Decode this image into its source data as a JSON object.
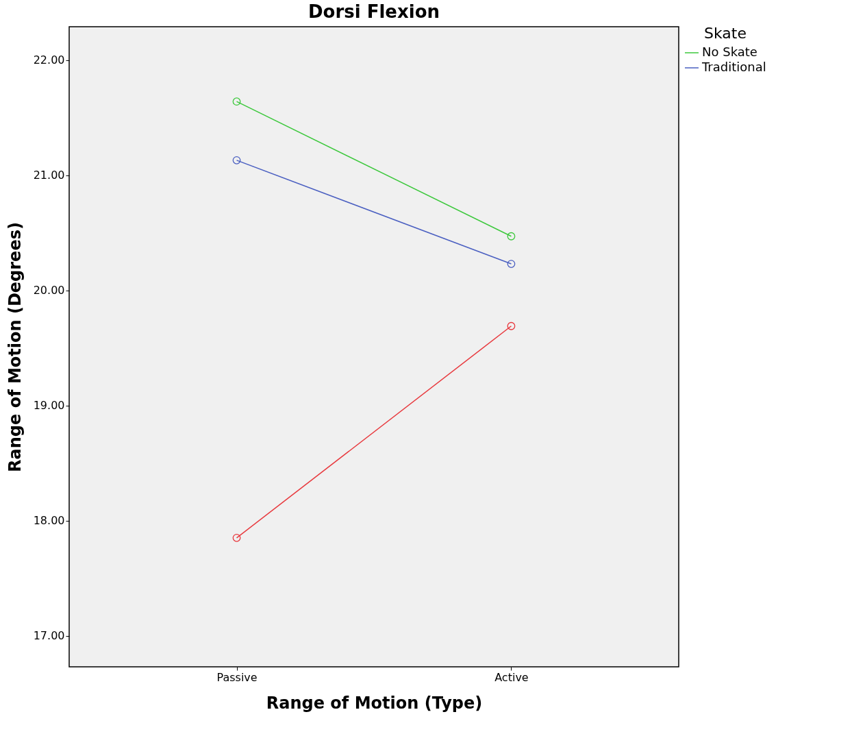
{
  "chart_data": {
    "type": "line",
    "title": "Dorsi Flexion",
    "xlabel": "Range of Motion (Type)",
    "ylabel": "Range of Motion (Degrees)",
    "legend_title": "Skate",
    "categories": [
      "Passive",
      "Active"
    ],
    "series": [
      {
        "name": "No Skate",
        "color": "#3cc83c",
        "values": [
          21.64,
          20.47
        ]
      },
      {
        "name": "Traditional",
        "color": "#4a5fc1",
        "values": [
          21.13,
          20.23
        ]
      },
      {
        "color": "#e8383d",
        "values": [
          17.85,
          19.69
        ]
      }
    ],
    "ylim": [
      16.73,
      22.29
    ],
    "yticks": [
      {
        "value": 17,
        "label": "17.00"
      },
      {
        "value": 18,
        "label": "18.00"
      },
      {
        "value": 19,
        "label": "19.00"
      },
      {
        "value": 20,
        "label": "20.00"
      },
      {
        "value": 21,
        "label": "21.00"
      },
      {
        "value": 22,
        "label": "22.00"
      }
    ],
    "grid": false,
    "legend": "top right",
    "marker": "circle",
    "line_style": "solid"
  }
}
